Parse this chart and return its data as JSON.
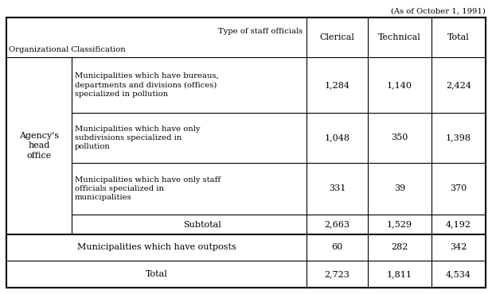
{
  "date_note": "(As of October 1, 1991)",
  "header_type_label": "Type of staff officials",
  "header_org_label": "Organizational Classification",
  "col_headers": [
    "Clerical",
    "Technical",
    "Total"
  ],
  "rows": [
    {
      "desc": "Municipalities which have bureaus,\ndepartments and divisions (offices)\nspecialized in pollution",
      "clerical": "1,284",
      "technical": "1,140",
      "total": "2,424",
      "is_subtotal": false
    },
    {
      "desc": "Municipalities which have only\nsubdivisions specialized in\npollution",
      "clerical": "1,048",
      "technical": "350",
      "total": "1,398",
      "is_subtotal": false
    },
    {
      "desc": "Municipalities which have only staff\nofficials specialized in\nmunicipalities",
      "clerical": "331",
      "technical": "39",
      "total": "370",
      "is_subtotal": false
    },
    {
      "desc": "Subtotal",
      "clerical": "2,663",
      "technical": "1,529",
      "total": "4,192",
      "is_subtotal": true
    }
  ],
  "agency_label": "Agency's\nhead\noffice",
  "outpost_row": {
    "desc": "Municipalities which have outposts",
    "clerical": "60",
    "technical": "282",
    "total": "342"
  },
  "total_row": {
    "desc": "Total",
    "clerical": "2,723",
    "technical": "1,811",
    "total": "4,534"
  },
  "bg_color": "#ffffff",
  "text_color": "#000000",
  "line_color": "#000000",
  "font_size": 8.0,
  "small_font_size": 7.2,
  "lw_thick": 1.5,
  "lw_thin": 0.8
}
